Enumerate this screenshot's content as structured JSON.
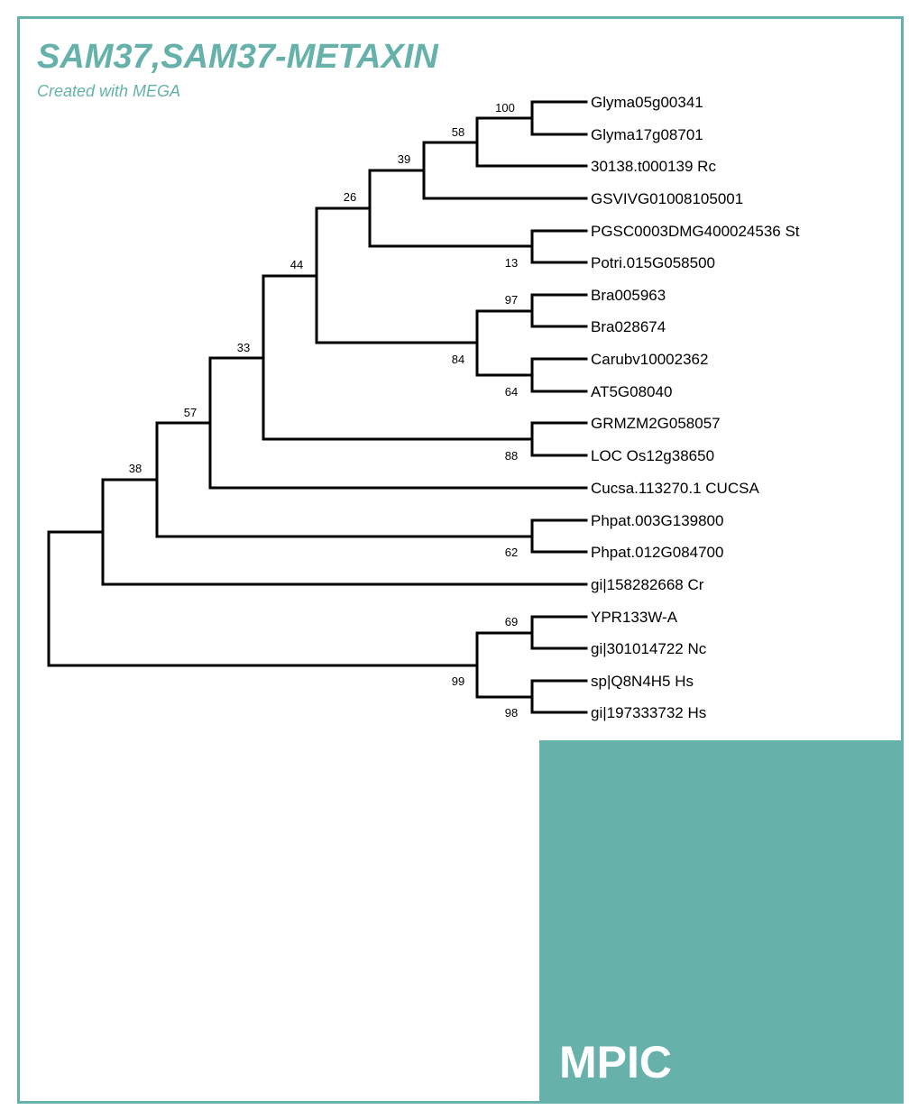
{
  "title": "SAM37,SAM37-METAXIN",
  "subtitle": "Created with MEGA",
  "logo_text": "MPIC",
  "colors": {
    "accent": "#66b2ab",
    "branch": "#000000"
  },
  "leaves": [
    "Glyma05g00341",
    "Glyma17g08701",
    "30138.t000139 Rc",
    "GSVIVG01008105001",
    "PGSC0003DMG400024536 St",
    "Potri.015G058500",
    "Bra005963",
    "Bra028674",
    "Carubv10002362",
    "AT5G08040",
    "GRMZM2G058057",
    "LOC Os12g38650",
    "Cucsa.113270.1 CUCSA",
    "Phpat.003G139800",
    "Phpat.012G084700",
    "gi|158282668 Cr",
    "YPR133W-A",
    "gi|301014722 Nc",
    "sp|Q8N4H5 Hs",
    "gi|197333732 Hs"
  ],
  "support": {
    "n100": "100",
    "n58": "58",
    "n39": "39",
    "n26": "26",
    "n13": "13",
    "n44": "44",
    "n97": "97",
    "n84": "84",
    "n64": "64",
    "n33": "33",
    "n88": "88",
    "n57": "57",
    "n38": "38",
    "n62": "62",
    "n69": "69",
    "n99": "99",
    "n98": "98"
  }
}
